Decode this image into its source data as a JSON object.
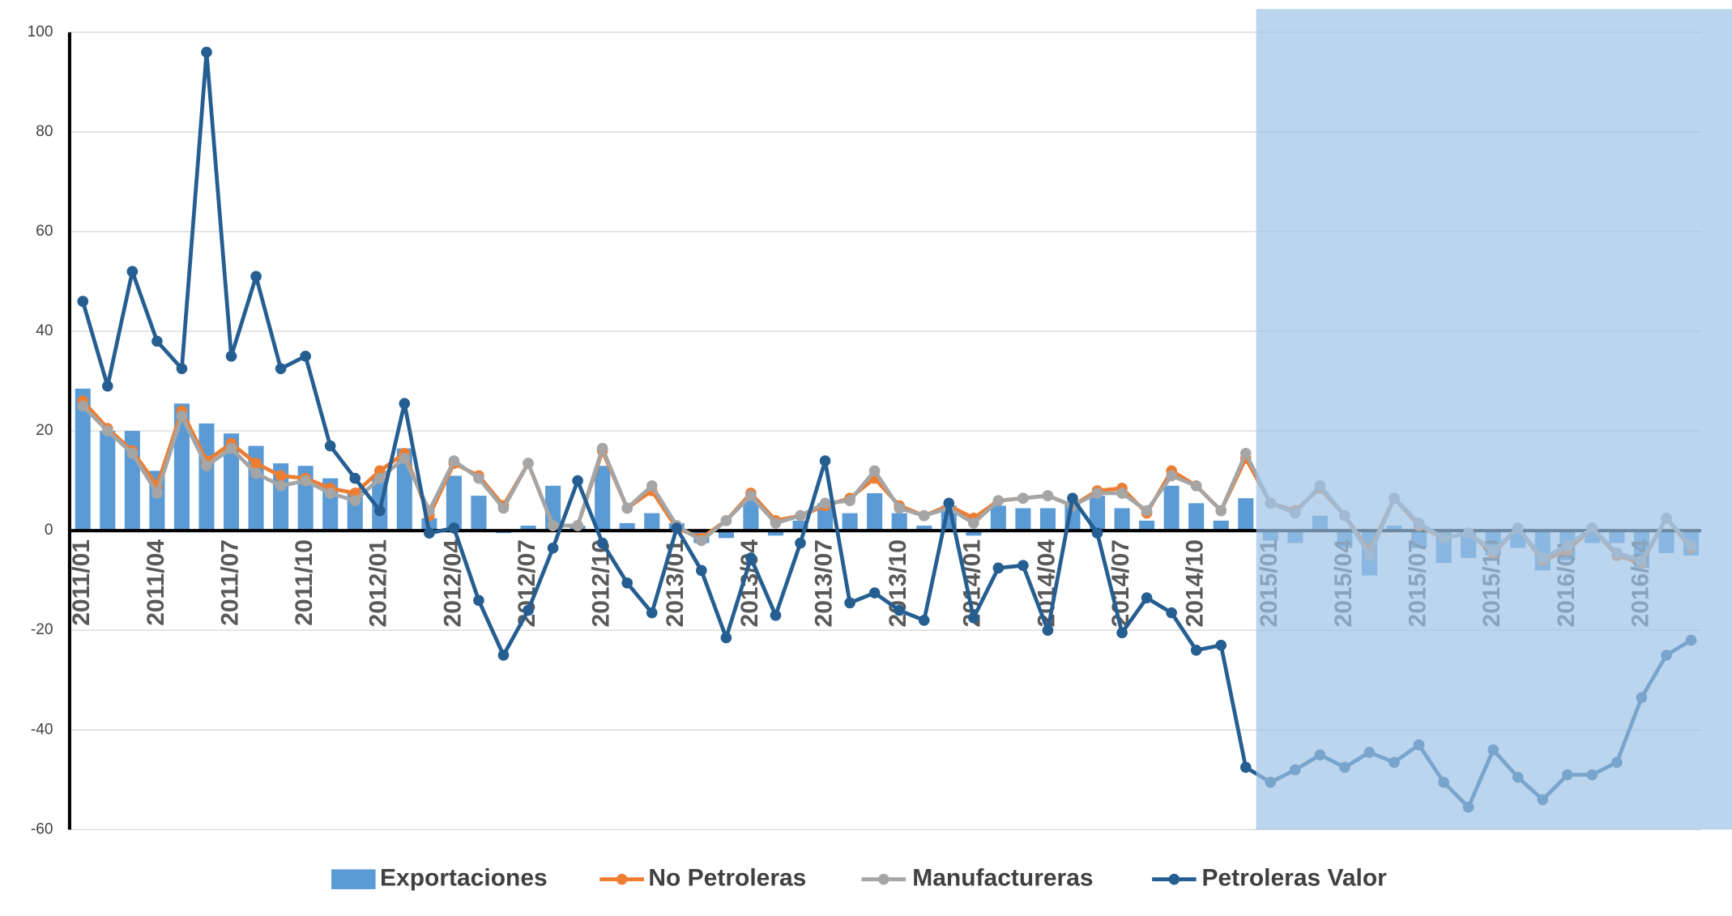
{
  "chart_data": {
    "type": "combo",
    "categories": [
      "2011/01",
      null,
      null,
      "2011/04",
      null,
      null,
      "2011/07",
      null,
      null,
      "2011/10",
      null,
      null,
      "2012/01",
      null,
      null,
      "2012/04",
      null,
      null,
      "2012/07",
      null,
      null,
      "2012/10",
      null,
      null,
      "2013/01",
      null,
      null,
      "2013/04",
      null,
      null,
      "2013/07",
      null,
      null,
      "2013/10",
      null,
      null,
      "2014/01",
      null,
      null,
      "2014/04",
      null,
      null,
      "2014/07",
      null,
      null,
      "2014/10",
      null,
      null,
      "2015/01",
      null,
      null,
      "2015/04",
      null,
      null,
      "2015/07",
      null,
      null,
      "2015/10",
      null,
      null,
      "2016/01",
      null,
      null,
      "2016/04",
      null,
      null
    ],
    "ylim": [
      -60,
      100
    ],
    "yticks": [
      -60,
      -40,
      -20,
      0,
      20,
      40,
      60,
      80,
      100
    ],
    "grid": true,
    "legend": "bottom",
    "highlight_start": "2015/01",
    "highlight_color": "#9dc3e6",
    "series": [
      {
        "name": "Exportaciones",
        "type": "bar",
        "color": "#5b9bd5",
        "values": [
          28.5,
          20,
          20,
          12,
          25.5,
          21.5,
          19.5,
          17,
          13.5,
          13,
          10.5,
          8,
          10.5,
          16.5,
          2.5,
          11,
          7,
          -0.5,
          1,
          9,
          1,
          13,
          1.5,
          3.5,
          1.5,
          -2.5,
          -1.5,
          6,
          -1,
          2,
          5.5,
          3.5,
          7.5,
          3.5,
          1,
          5,
          -1,
          5,
          4.5,
          4.5,
          5.5,
          7,
          4.5,
          2,
          9,
          5.5,
          2,
          6.5,
          -2,
          -2.5,
          3,
          -3.5,
          -9,
          1,
          -3.5,
          -6.5,
          -5.5,
          -5,
          -3.5,
          -8,
          -6,
          -2.5,
          -2.5,
          -7.5,
          -4.5,
          -5
        ]
      },
      {
        "name": "No Petroleras",
        "type": "line",
        "color": "#ed7d31",
        "values": [
          26,
          20.5,
          16,
          9,
          24,
          14,
          17.5,
          13.5,
          11,
          10.5,
          8.5,
          7.5,
          12,
          15.5,
          3,
          13.5,
          11,
          5,
          13.5,
          1,
          1,
          16,
          4.5,
          8,
          0.5,
          -1.5,
          2,
          7.5,
          2,
          3,
          5,
          6.5,
          10.5,
          5,
          3,
          5,
          2.5,
          6,
          6.5,
          7,
          5,
          8,
          8.5,
          3.5,
          12,
          9,
          4,
          14.5,
          5.5,
          4,
          8.5,
          3,
          -4,
          6.5,
          1,
          -1.5,
          -0.5,
          -4.5,
          0.5,
          -6,
          -4,
          0.5,
          -5,
          -6.5,
          2.5,
          -3.5
        ]
      },
      {
        "name": "Manufactureras",
        "type": "line",
        "color": "#a5a5a5",
        "values": [
          25,
          20,
          15.5,
          7.5,
          23,
          13,
          16.5,
          11.5,
          9,
          10,
          7.5,
          6,
          10.5,
          14.5,
          4,
          14,
          10.5,
          4.5,
          13.5,
          1,
          1,
          16.5,
          4.5,
          9,
          1,
          -2,
          2,
          7,
          1.5,
          3,
          5.5,
          6,
          12,
          4.5,
          3,
          4.5,
          1.5,
          6,
          6.5,
          7,
          5,
          7.5,
          7.5,
          4,
          11,
          9,
          4,
          15.5,
          5.5,
          3.5,
          9,
          3,
          -5,
          6.5,
          1.5,
          -1.5,
          -0.5,
          -4,
          0.5,
          -5.5,
          -3,
          0.5,
          -4.5,
          -6,
          2.5,
          -3
        ]
      },
      {
        "name": "Petroleras Valor",
        "type": "line",
        "color": "#255e91",
        "values": [
          46,
          29,
          52,
          38,
          32.5,
          96,
          35,
          51,
          32.5,
          35,
          17,
          10.5,
          4,
          25.5,
          -0.5,
          0.5,
          -14,
          -25,
          -16,
          -3.5,
          10,
          -2.5,
          -10.5,
          -16.5,
          0.5,
          -8,
          -21.5,
          -5.5,
          -17,
          -2.5,
          14,
          -14.5,
          -12.5,
          -16,
          -18,
          5.5,
          -17.5,
          -7.5,
          -7,
          -20,
          6.5,
          -0.5,
          -20.5,
          -13.5,
          -16.5,
          -24,
          -23,
          -47.5,
          -50.5,
          -48,
          -45,
          -47.5,
          -44.5,
          -46.5,
          -43,
          -50.5,
          -55.5,
          -44,
          -49.5,
          -54,
          -49,
          -49,
          -46.5,
          -33.5,
          -25,
          -22
        ]
      }
    ]
  }
}
